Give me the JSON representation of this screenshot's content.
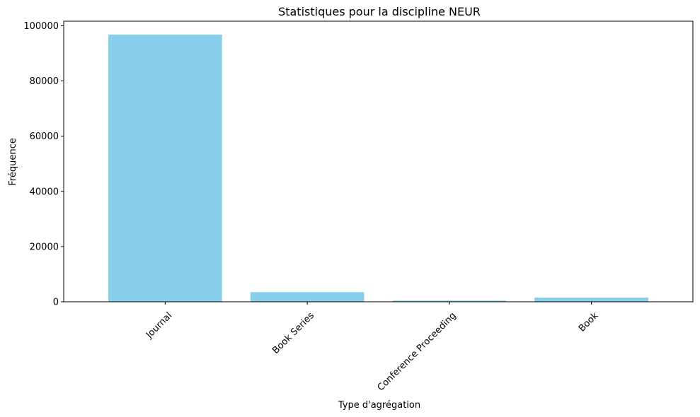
{
  "chart_data": {
    "type": "bar",
    "title": "Statistiques pour la discipline NEUR",
    "xlabel": "Type d'agrégation",
    "ylabel": "Fréquence",
    "categories": [
      "Journal",
      "Book Series",
      "Conference Proceeding",
      "Book"
    ],
    "values": [
      96800,
      3500,
      450,
      1500
    ],
    "ylim": [
      0,
      101640
    ],
    "yticks": [
      0,
      20000,
      40000,
      60000,
      80000,
      100000
    ],
    "ytick_labels": [
      "0",
      "20000",
      "40000",
      "60000",
      "80000",
      "100000"
    ],
    "bar_color": "#87CEEB",
    "grid": false,
    "legend": "none"
  }
}
